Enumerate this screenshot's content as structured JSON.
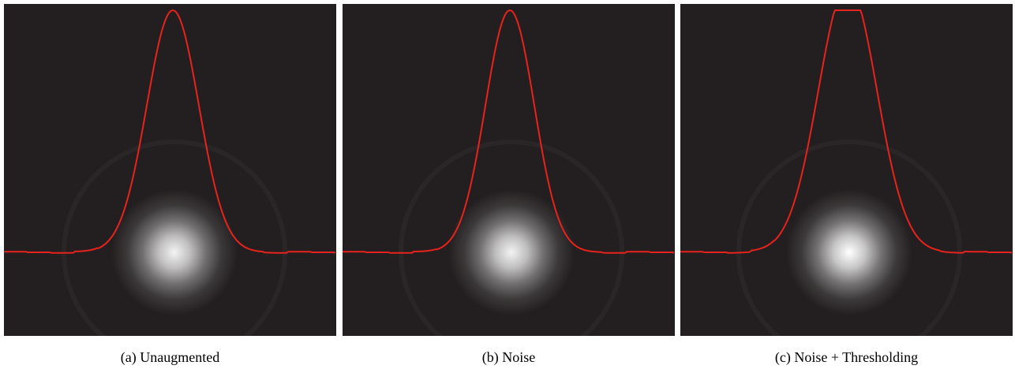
{
  "captions": [
    "(a) Unaugmented",
    "(b) Noise",
    "(c) Noise + Thresholding"
  ]
}
